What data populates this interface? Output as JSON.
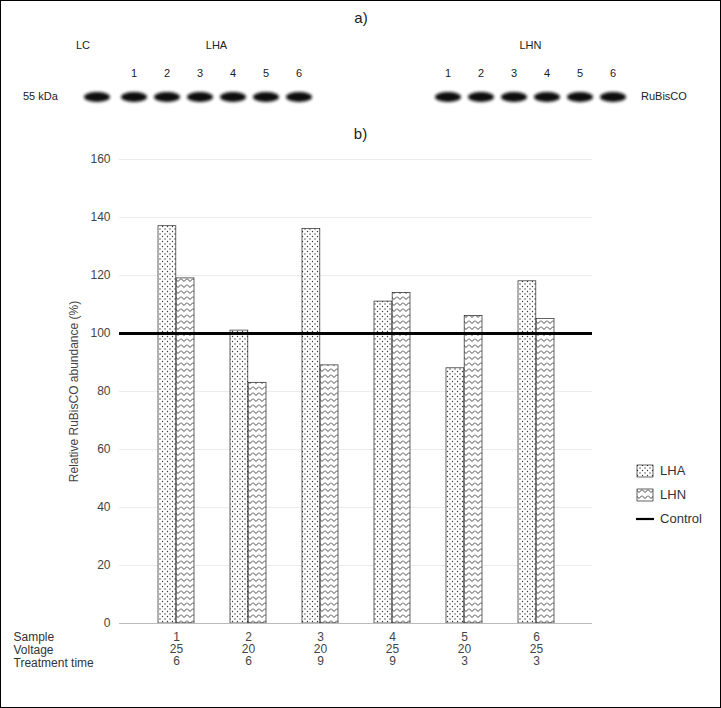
{
  "blot": {
    "title": "a)",
    "marker_label": "55 kDa",
    "protein_label": "RuBisCO",
    "control_lane": "LC",
    "groups": [
      {
        "name": "LHA",
        "lanes": [
          "1",
          "2",
          "3",
          "4",
          "5",
          "6"
        ]
      },
      {
        "name": "LHN",
        "lanes": [
          "1",
          "2",
          "3",
          "4",
          "5",
          "6"
        ]
      }
    ]
  },
  "chart_data": {
    "type": "bar",
    "title": "b)",
    "ylabel": "Relative RuBisCO abundance (%)",
    "xlabel": "Sample",
    "categories": [
      "1",
      "2",
      "3",
      "4",
      "5",
      "6"
    ],
    "series": [
      {
        "name": "LHA",
        "values": [
          137,
          101,
          136,
          111,
          88,
          118
        ]
      },
      {
        "name": "LHN",
        "values": [
          119,
          83,
          89,
          114,
          106,
          105
        ]
      },
      {
        "name": "Control",
        "type": "line",
        "color": "#000000",
        "values": [
          100,
          100,
          100,
          100,
          100,
          100
        ]
      }
    ],
    "table": {
      "rows": [
        {
          "label": "Voltage",
          "values": [
            25,
            20,
            20,
            25,
            20,
            25
          ]
        },
        {
          "label": "Treatment time",
          "values": [
            6,
            6,
            9,
            9,
            3,
            3
          ]
        }
      ]
    },
    "ylim": [
      0,
      160
    ],
    "yticks": [
      0,
      20,
      40,
      60,
      80,
      100,
      120,
      140,
      160
    ],
    "grid": true,
    "legend": "right"
  }
}
